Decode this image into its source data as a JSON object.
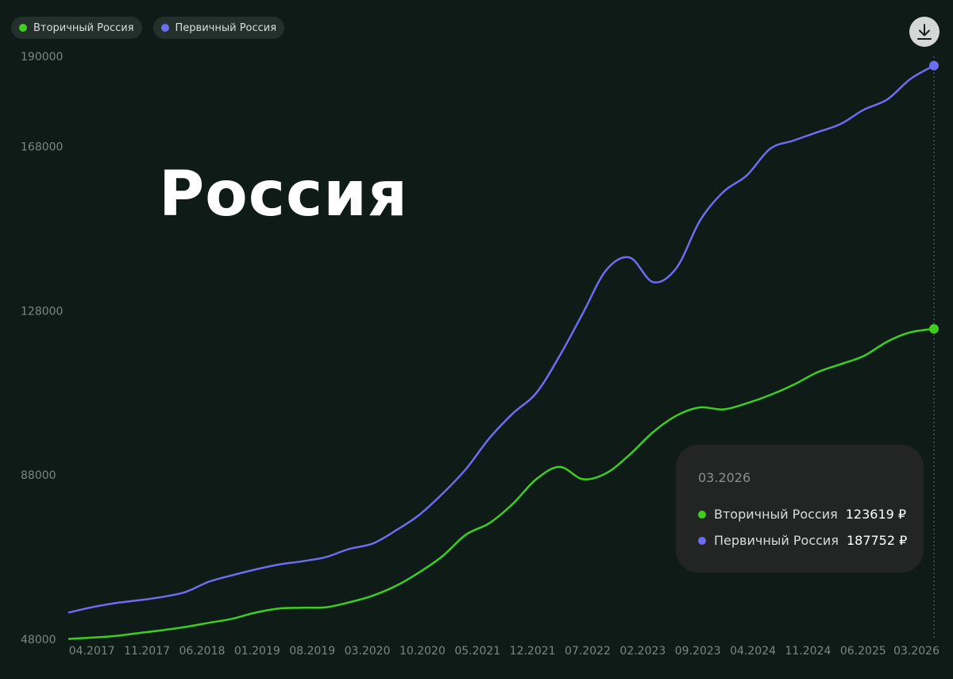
{
  "legend": {
    "items": [
      {
        "label": "Вторичный Россия",
        "color": "#3ecf1e"
      },
      {
        "label": "Первичный Россия",
        "color": "#6c6df0"
      }
    ]
  },
  "overlay_title": "Россия",
  "tooltip": {
    "date": "03.2026",
    "rows": [
      {
        "label": "Вторичный Россия",
        "value": "123619 ₽",
        "color": "#3ecf1e"
      },
      {
        "label": "Первичный Россия",
        "value": "187752 ₽",
        "color": "#6c6df0"
      }
    ]
  },
  "icons": {
    "download": "download-icon"
  },
  "chart_data": {
    "type": "line",
    "ylim": [
      48000,
      190000
    ],
    "y_ticks": [
      "190000",
      "168000",
      "128000",
      "88000",
      "48000"
    ],
    "y_tick_values": [
      190000,
      168000,
      128000,
      88000,
      48000
    ],
    "x_tick_labels": [
      "04.2017",
      "11.2017",
      "06.2018",
      "01.2019",
      "08.2019",
      "03.2020",
      "10.2020",
      "05.2021",
      "12.2021",
      "07.2022",
      "02.2023",
      "09.2023",
      "04.2024",
      "11.2024",
      "06.2025",
      "03.2026"
    ],
    "x": [
      "01.2017",
      "04.2017",
      "07.2017",
      "10.2017",
      "01.2018",
      "04.2018",
      "07.2018",
      "10.2018",
      "01.2019",
      "04.2019",
      "07.2019",
      "10.2019",
      "01.2020",
      "04.2020",
      "07.2020",
      "10.2020",
      "01.2021",
      "04.2021",
      "07.2021",
      "10.2021",
      "01.2022",
      "04.2022",
      "07.2022",
      "10.2022",
      "01.2023",
      "04.2023",
      "07.2023",
      "10.2023",
      "01.2024",
      "04.2024",
      "07.2024",
      "10.2024",
      "01.2025",
      "04.2025",
      "07.2025",
      "10.2025",
      "01.2026",
      "03.2026"
    ],
    "series": [
      {
        "name": "Первичный Россия",
        "color": "#6c6df0",
        "values": [
          54500,
          55800,
          56800,
          57500,
          58300,
          59500,
          62000,
          63600,
          65000,
          66200,
          67000,
          68000,
          70000,
          71300,
          74500,
          78300,
          83500,
          89500,
          97000,
          103000,
          108000,
          117000,
          127500,
          138000,
          141000,
          135000,
          138500,
          150000,
          157000,
          161000,
          167500,
          169500,
          171500,
          173500,
          177000,
          179500,
          184500,
          187752
        ]
      },
      {
        "name": "Вторичный Россия",
        "color": "#3ecf1e",
        "values": [
          48100,
          48400,
          48800,
          49500,
          50200,
          51000,
          52000,
          53000,
          54500,
          55500,
          55700,
          55800,
          57000,
          58600,
          61000,
          64300,
          68300,
          73500,
          76300,
          81000,
          87000,
          90000,
          87000,
          88500,
          93000,
          98500,
          102500,
          104500,
          104000,
          105500,
          107500,
          110000,
          113000,
          115000,
          117000,
          120500,
          122800,
          123619
        ]
      }
    ]
  }
}
